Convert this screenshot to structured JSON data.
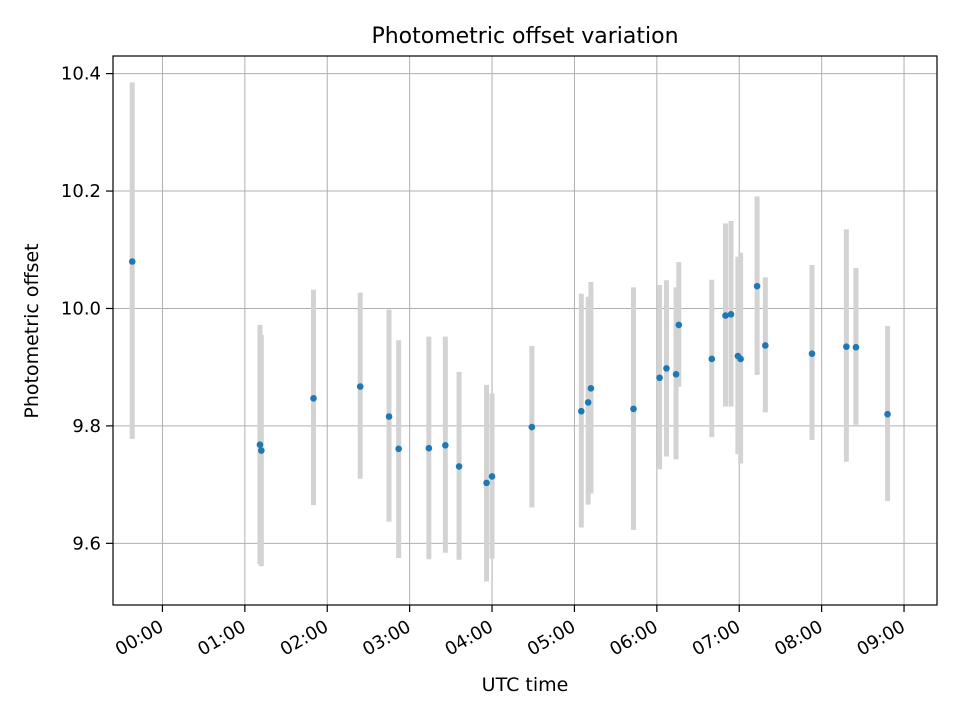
{
  "chart_data": {
    "type": "scatter",
    "title": "Photometric offset variation",
    "xlabel": "UTC time",
    "ylabel": "Photometric offset",
    "grid": true,
    "legend": "none",
    "xlim": [
      "23:24",
      "09:24"
    ],
    "ylim": [
      9.495,
      10.43
    ],
    "x_ticks": [
      "00:00",
      "01:00",
      "02:00",
      "03:00",
      "04:00",
      "05:00",
      "06:00",
      "07:00",
      "08:00",
      "09:00"
    ],
    "y_ticks": [
      "9.6",
      "9.8",
      "10.0",
      "10.2",
      "10.4"
    ],
    "colors": {
      "point": "#1f77b4",
      "errorbar": "#d3d3d3",
      "grid": "#b0b0b0"
    },
    "series": [
      {
        "points": [
          {
            "x": "23:38",
            "y": 10.08,
            "ylow": 9.778,
            "yhigh": 10.385
          },
          {
            "x": "01:11",
            "y": 9.768,
            "ylow": 9.565,
            "yhigh": 9.972
          },
          {
            "x": "01:12",
            "y": 9.758,
            "ylow": 9.561,
            "yhigh": 9.955
          },
          {
            "x": "01:50",
            "y": 9.847,
            "ylow": 9.665,
            "yhigh": 10.032
          },
          {
            "x": "02:24",
            "y": 9.867,
            "ylow": 9.71,
            "yhigh": 10.027
          },
          {
            "x": "02:45",
            "y": 9.816,
            "ylow": 9.637,
            "yhigh": 9.998
          },
          {
            "x": "02:52",
            "y": 9.761,
            "ylow": 9.575,
            "yhigh": 9.946
          },
          {
            "x": "03:14",
            "y": 9.762,
            "ylow": 9.573,
            "yhigh": 9.952
          },
          {
            "x": "03:26",
            "y": 9.767,
            "ylow": 9.584,
            "yhigh": 9.952
          },
          {
            "x": "03:36",
            "y": 9.731,
            "ylow": 9.572,
            "yhigh": 9.892
          },
          {
            "x": "03:56",
            "y": 9.703,
            "ylow": 9.535,
            "yhigh": 9.87
          },
          {
            "x": "04:00",
            "y": 9.714,
            "ylow": 9.574,
            "yhigh": 9.855
          },
          {
            "x": "04:29",
            "y": 9.798,
            "ylow": 9.661,
            "yhigh": 9.936
          },
          {
            "x": "05:05",
            "y": 9.825,
            "ylow": 9.627,
            "yhigh": 10.025
          },
          {
            "x": "05:10",
            "y": 9.84,
            "ylow": 9.666,
            "yhigh": 10.02
          },
          {
            "x": "05:12",
            "y": 9.864,
            "ylow": 9.685,
            "yhigh": 10.045
          },
          {
            "x": "05:43",
            "y": 9.829,
            "ylow": 9.623,
            "yhigh": 10.036
          },
          {
            "x": "06:02",
            "y": 9.882,
            "ylow": 9.726,
            "yhigh": 10.04
          },
          {
            "x": "06:07",
            "y": 9.898,
            "ylow": 9.748,
            "yhigh": 10.048
          },
          {
            "x": "06:14",
            "y": 9.888,
            "ylow": 9.743,
            "yhigh": 10.036
          },
          {
            "x": "06:16",
            "y": 9.972,
            "ylow": 9.867,
            "yhigh": 10.079
          },
          {
            "x": "06:40",
            "y": 9.914,
            "ylow": 9.781,
            "yhigh": 10.049
          },
          {
            "x": "06:50",
            "y": 9.988,
            "ylow": 9.833,
            "yhigh": 10.145
          },
          {
            "x": "06:54",
            "y": 9.99,
            "ylow": 9.833,
            "yhigh": 10.149
          },
          {
            "x": "06:59",
            "y": 9.919,
            "ylow": 9.752,
            "yhigh": 10.088
          },
          {
            "x": "07:01",
            "y": 9.914,
            "ylow": 9.736,
            "yhigh": 10.095
          },
          {
            "x": "07:13",
            "y": 10.038,
            "ylow": 9.887,
            "yhigh": 10.191
          },
          {
            "x": "07:19",
            "y": 9.937,
            "ylow": 9.823,
            "yhigh": 10.053
          },
          {
            "x": "07:53",
            "y": 9.923,
            "ylow": 9.776,
            "yhigh": 10.074
          },
          {
            "x": "08:18",
            "y": 9.935,
            "ylow": 9.739,
            "yhigh": 10.135
          },
          {
            "x": "08:25",
            "y": 9.934,
            "ylow": 9.802,
            "yhigh": 10.069
          },
          {
            "x": "08:48",
            "y": 9.82,
            "ylow": 9.672,
            "yhigh": 9.97
          }
        ]
      }
    ]
  }
}
